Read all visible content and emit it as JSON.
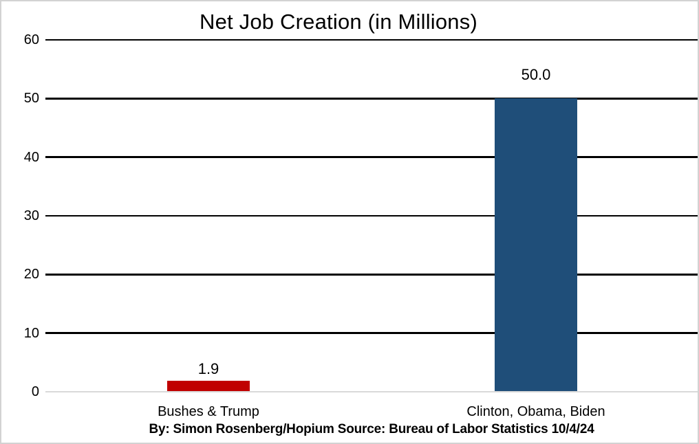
{
  "chart_data": {
    "type": "bar",
    "title": "Net Job Creation (in Millions)",
    "categories": [
      "Bushes & Trump",
      "Clinton, Obama, Biden"
    ],
    "values": [
      1.9,
      50.0
    ],
    "value_labels": [
      "1.9",
      "50.0"
    ],
    "bar_colors": [
      "#C00000",
      "#1F4E79"
    ],
    "ylim": [
      0,
      60
    ],
    "yticks": [
      0,
      10,
      20,
      30,
      40,
      50,
      60
    ],
    "ytick_labels": [
      "0",
      "10",
      "20",
      "30",
      "40",
      "50",
      "60"
    ],
    "grid": "horizontal-major",
    "legend": "none",
    "footer": "By: Simon Rosenberg/Hopium Source: Bureau of Labor Statistics 10/4/24"
  },
  "colors": {
    "background": "#FFFFFF",
    "border": "#D2D2D2",
    "gridline_major": "#000000",
    "axis_baseline": "#D9D9D9",
    "bar_bushes_trump": "#C00000",
    "bar_clinton_obama_biden": "#1F4E79",
    "text": "#000000"
  }
}
